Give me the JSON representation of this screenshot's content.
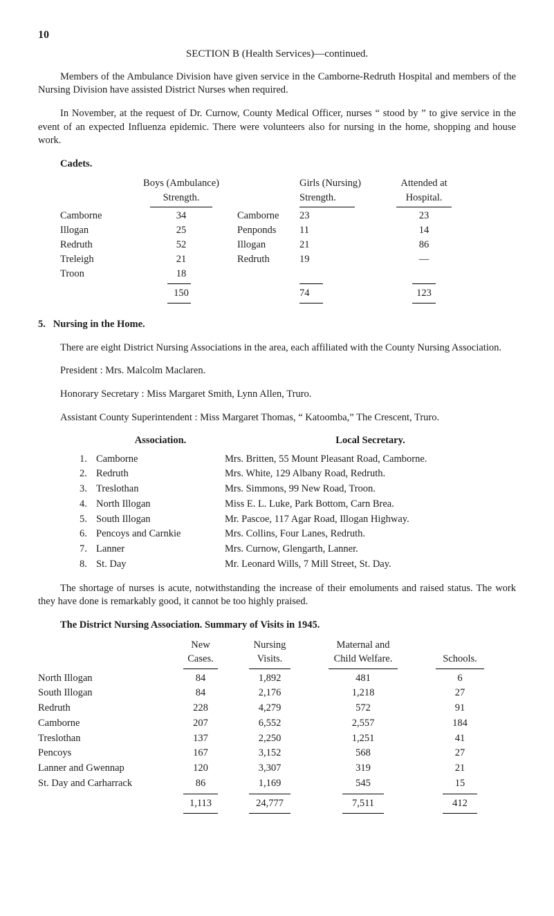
{
  "page_number": "10",
  "section_title": "SECTION  B  (Health  Services)—continued.",
  "para1": "Members of the Ambulance Division have given service in the Camborne-Redruth Hospital and members of the Nursing Division have assisted District Nurses when required.",
  "para2": "In November, at the request of Dr. Curnow, County Medical Officer, nurses “ stood by ” to give service in the event of an expected Influenza epidemic.  There were volunteers also for nursing in the home, shopping and house work.",
  "cadets": {
    "heading": "Cadets.",
    "col_boys_l1": "Boys (Ambulance)",
    "col_boys_l2": "Strength.",
    "col_girls_l1": "Girls (Nursing)",
    "col_girls_l2": "Strength.",
    "col_att_l1": "Attended at",
    "col_att_l2": "Hospital.",
    "rows": [
      {
        "b_name": "Camborne",
        "b_val": "34",
        "g_name": "Camborne",
        "g_val": "23",
        "a": "23"
      },
      {
        "b_name": "Illogan",
        "b_val": "25",
        "g_name": "Penponds",
        "g_val": "11",
        "a": "14"
      },
      {
        "b_name": "Redruth",
        "b_val": "52",
        "g_name": "Illogan",
        "g_val": "21",
        "a": "86"
      },
      {
        "b_name": "Treleigh",
        "b_val": "21",
        "g_name": "Redruth",
        "g_val": "19",
        "a": "—"
      },
      {
        "b_name": "Troon",
        "b_val": "18",
        "g_name": "",
        "g_val": "",
        "a": ""
      }
    ],
    "tot_b": "150",
    "tot_g": "74",
    "tot_a": "123"
  },
  "item5": {
    "num": "5.",
    "title": "Nursing in the Home.",
    "para": "There are eight District Nursing Associations in the area, each affiliated with the County Nursing Association.",
    "president": "President :  Mrs. Malcolm Maclaren.",
    "honsec": "Honorary Secretary :  Miss Margaret Smith, Lynn Allen, Truro.",
    "asst": "Assistant County Superintendent :  Miss Margaret Thomas, “ Katoomba,” The Crescent, Truro.",
    "col_a": "Association.",
    "col_b": "Local Secretary.",
    "rows": [
      {
        "n": "1.",
        "a": "Camborne",
        "b": "Mrs. Britten, 55 Mount Pleasant Road, Camborne."
      },
      {
        "n": "2.",
        "a": "Redruth",
        "b": "Mrs. White, 129 Albany Road, Redruth."
      },
      {
        "n": "3.",
        "a": "Treslothan",
        "b": "Mrs. Simmons, 99 New Road, Troon."
      },
      {
        "n": "4.",
        "a": "North Illogan",
        "b": "Miss E. L. Luke, Park Bottom, Carn Brea."
      },
      {
        "n": "5.",
        "a": "South Illogan",
        "b": "Mr. Pascoe, 117 Agar Road, Illogan Highway."
      },
      {
        "n": "6.",
        "a": "Pencoys and Carnkie",
        "b": "Mrs. Collins, Four Lanes, Redruth."
      },
      {
        "n": "7.",
        "a": "Lanner",
        "b": "Mrs. Curnow, Glengarth, Lanner."
      },
      {
        "n": "8.",
        "a": "St. Day",
        "b": "Mr. Leonard Wills, 7 Mill Street, St. Day."
      }
    ],
    "para2": "The shortage of nurses is acute, notwithstanding the increase of their emoluments and raised status.  The work they have done is remarkably good, it cannot be too highly praised."
  },
  "visits": {
    "title": "The District Nursing Association.  Summary of Visits in 1945.",
    "h_new": "New",
    "h_new2": "Cases.",
    "h_vis": "Nursing",
    "h_vis2": "Visits.",
    "h_mat": "Maternal and",
    "h_mat2": "Child Welfare.",
    "h_sch": "Schools.",
    "rows": [
      {
        "name": "North Illogan",
        "new": "84",
        "vis": "1,892",
        "mat": "481",
        "sch": "6"
      },
      {
        "name": "South Illogan",
        "new": "84",
        "vis": "2,176",
        "mat": "1,218",
        "sch": "27"
      },
      {
        "name": "Redruth",
        "new": "228",
        "vis": "4,279",
        "mat": "572",
        "sch": "91"
      },
      {
        "name": "Camborne",
        "new": "207",
        "vis": "6,552",
        "mat": "2,557",
        "sch": "184"
      },
      {
        "name": "Treslothan",
        "new": "137",
        "vis": "2,250",
        "mat": "1,251",
        "sch": "41"
      },
      {
        "name": "Pencoys",
        "new": "167",
        "vis": "3,152",
        "mat": "568",
        "sch": "27"
      },
      {
        "name": "Lanner and Gwennap",
        "new": "120",
        "vis": "3,307",
        "mat": "319",
        "sch": "21"
      },
      {
        "name": "St. Day and Carharrack",
        "new": "86",
        "vis": "1,169",
        "mat": "545",
        "sch": "15"
      }
    ],
    "tot": {
      "new": "1,113",
      "vis": "24,777",
      "mat": "7,511",
      "sch": "412"
    }
  }
}
